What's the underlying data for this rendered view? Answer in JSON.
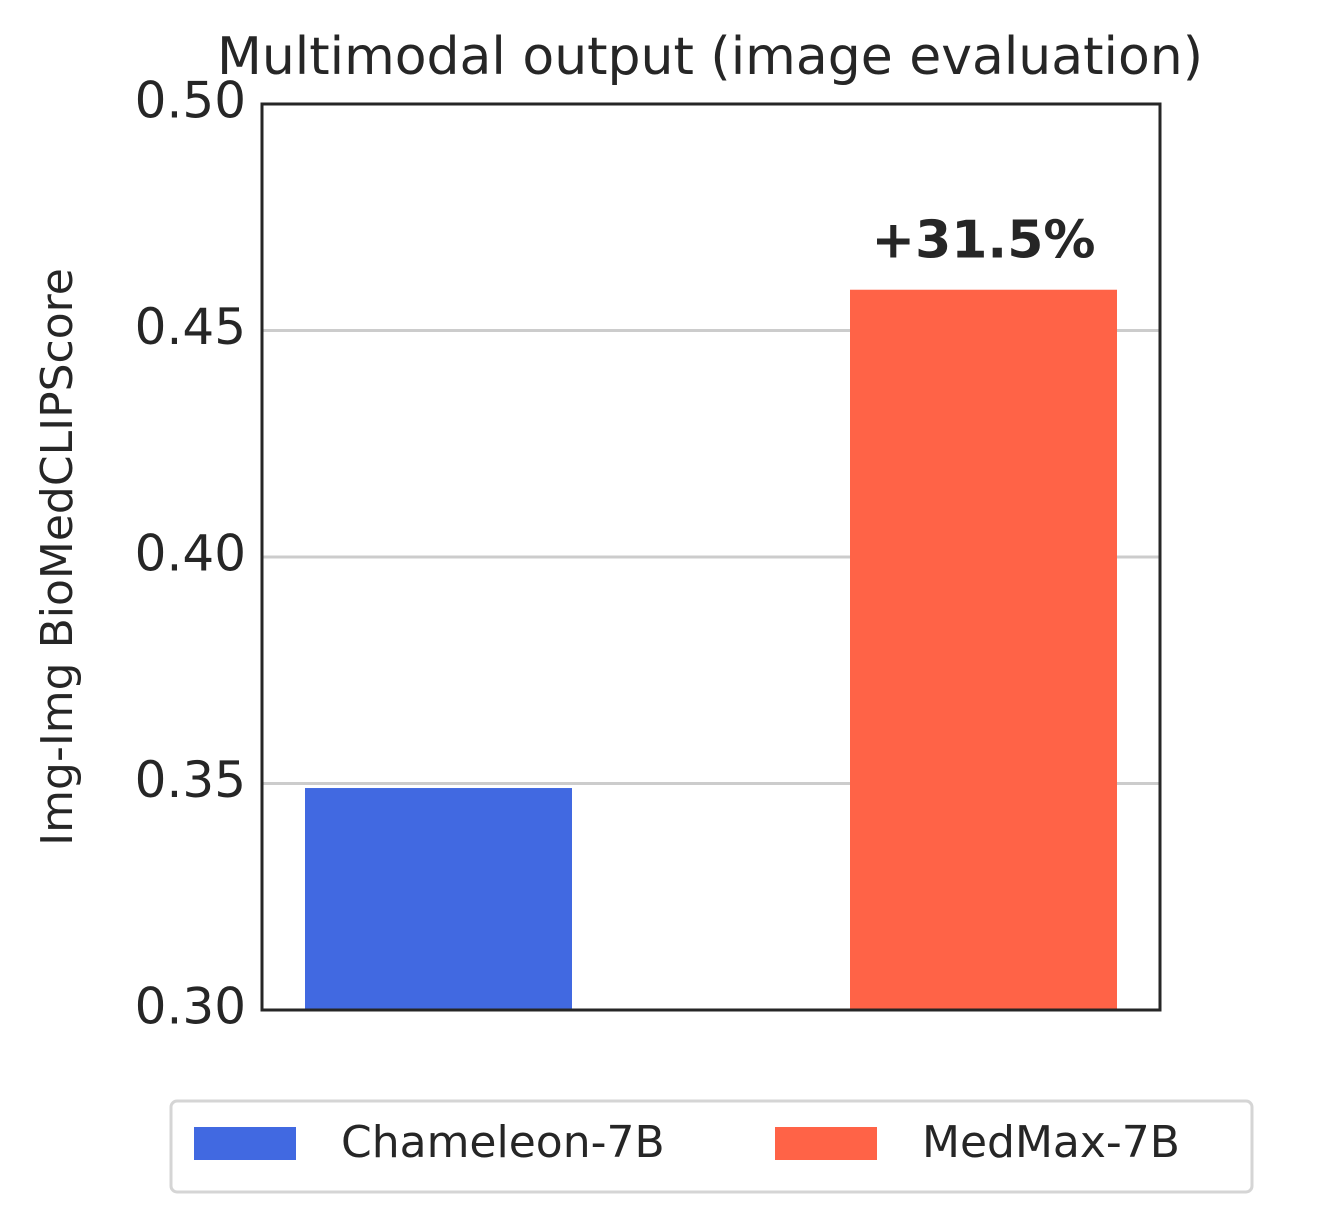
{
  "chart_data": {
    "type": "bar",
    "title": "Multimodal output (image evaluation)",
    "y_label": "Img-Img BioMedCLIPScore",
    "categories": [
      null,
      null
    ],
    "series": [
      {
        "name": "Chameleon-7B",
        "color": "#4169e1",
        "values": [
          0.349,
          null
        ]
      },
      {
        "name": "MedMax-7B",
        "color": "#ff6347",
        "values": [
          null,
          0.459
        ]
      }
    ],
    "annotation": "+31.5%",
    "ylim": [
      0.3,
      0.5
    ],
    "yticks": [
      {
        "value": 0.3,
        "label": "0.30"
      },
      0.35,
      {
        "value": 0.4,
        "label": "0.40"
      },
      0.45,
      {
        "value": 0.5,
        "label": "0.50"
      }
    ],
    "grid": true,
    "legend": "bottom"
  }
}
